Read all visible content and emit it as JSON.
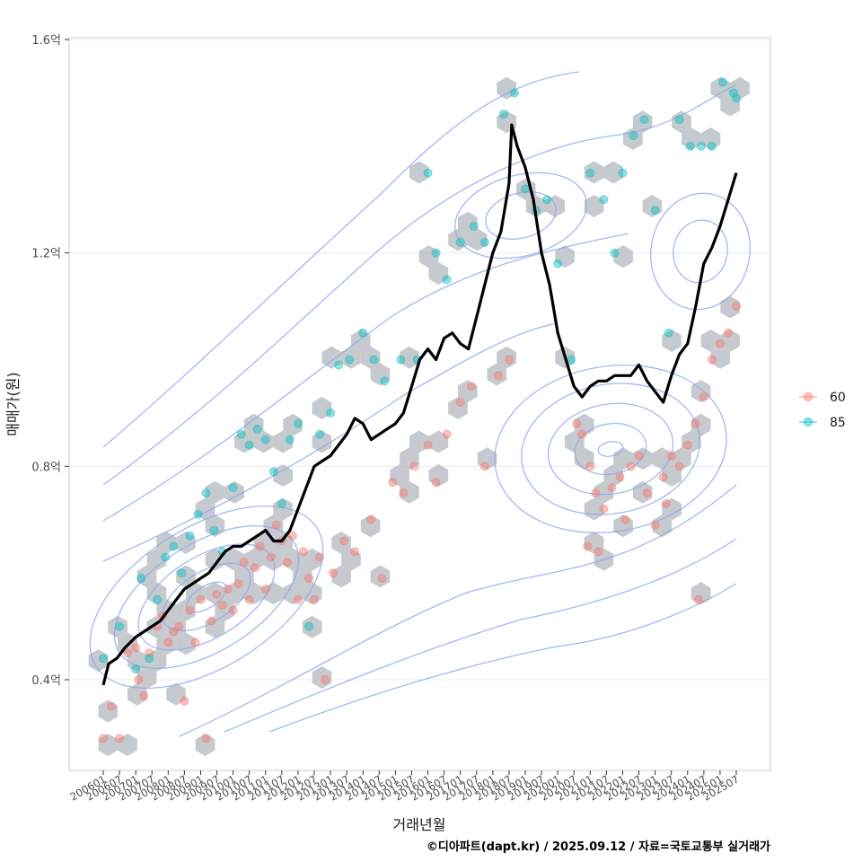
{
  "chart_data": {
    "type": "scatter",
    "xlabel": "거래년월",
    "ylabel": "매매가(원)",
    "caption": "©디아파트(dapt.kr) / 2025.09.12 / 자료=국토교통부 실거래가",
    "x_range": [
      "2006-01",
      "2025-07"
    ],
    "ylim": [
      0.22,
      1.6
    ],
    "y_ticks": [
      0.4,
      0.8,
      1.2,
      1.6
    ],
    "y_tick_labels": [
      "0.4억",
      "0.8억",
      "1.2억",
      "1.6억"
    ],
    "x_tick_labels": [
      "200601",
      "200607",
      "200701",
      "200707",
      "200801",
      "200807",
      "200901",
      "200907",
      "201001",
      "201007",
      "201101",
      "201107",
      "201201",
      "201207",
      "201301",
      "201307",
      "201401",
      "201407",
      "201501",
      "201507",
      "201601",
      "201607",
      "201701",
      "201707",
      "201801",
      "201807",
      "201901",
      "201907",
      "202001",
      "202007",
      "202101",
      "202107",
      "202201",
      "202207",
      "202301",
      "202307",
      "202401",
      "202407",
      "202501",
      "202507"
    ],
    "grid": true,
    "legend": {
      "position": "right",
      "entries": [
        {
          "name": "60",
          "color": "#F8766D"
        },
        {
          "name": "85",
          "color": "#00BFC4"
        }
      ]
    },
    "colors": {
      "series_60": "#F8766D",
      "series_85": "#00BFC4",
      "hexbin": "#b3b8bd",
      "contour": "#8fa6ee",
      "trend": "#000000",
      "panel_border": "#cccccc",
      "grid": "#ebebeb"
    },
    "trend_line": {
      "name": "",
      "points": [
        [
          "2006-01",
          0.39
        ],
        [
          "2006-03",
          0.43
        ],
        [
          "2006-06",
          0.44
        ],
        [
          "2006-09",
          0.46
        ],
        [
          "2007-01",
          0.48
        ],
        [
          "2007-04",
          0.49
        ],
        [
          "2007-07",
          0.5
        ],
        [
          "2007-10",
          0.51
        ],
        [
          "2008-01",
          0.53
        ],
        [
          "2008-04",
          0.55
        ],
        [
          "2008-07",
          0.57
        ],
        [
          "2008-10",
          0.58
        ],
        [
          "2009-01",
          0.59
        ],
        [
          "2009-04",
          0.6
        ],
        [
          "2009-07",
          0.62
        ],
        [
          "2009-10",
          0.64
        ],
        [
          "2010-01",
          0.65
        ],
        [
          "2010-04",
          0.65
        ],
        [
          "2010-07",
          0.66
        ],
        [
          "2010-10",
          0.67
        ],
        [
          "2011-01",
          0.68
        ],
        [
          "2011-04",
          0.66
        ],
        [
          "2011-07",
          0.66
        ],
        [
          "2011-10",
          0.68
        ],
        [
          "2012-01",
          0.72
        ],
        [
          "2012-04",
          0.76
        ],
        [
          "2012-07",
          0.8
        ],
        [
          "2012-10",
          0.81
        ],
        [
          "2013-01",
          0.82
        ],
        [
          "2013-04",
          0.84
        ],
        [
          "2013-07",
          0.86
        ],
        [
          "2013-10",
          0.89
        ],
        [
          "2014-01",
          0.88
        ],
        [
          "2014-04",
          0.85
        ],
        [
          "2014-07",
          0.86
        ],
        [
          "2014-10",
          0.87
        ],
        [
          "2015-01",
          0.88
        ],
        [
          "2015-04",
          0.9
        ],
        [
          "2015-07",
          0.95
        ],
        [
          "2015-10",
          1.0
        ],
        [
          "2016-01",
          1.02
        ],
        [
          "2016-04",
          1.0
        ],
        [
          "2016-07",
          1.04
        ],
        [
          "2016-10",
          1.05
        ],
        [
          "2017-01",
          1.03
        ],
        [
          "2017-04",
          1.02
        ],
        [
          "2017-07",
          1.08
        ],
        [
          "2017-10",
          1.14
        ],
        [
          "2018-01",
          1.2
        ],
        [
          "2018-04",
          1.24
        ],
        [
          "2018-07",
          1.33
        ],
        [
          "2018-08",
          1.44
        ],
        [
          "2018-10",
          1.4
        ],
        [
          "2019-01",
          1.36
        ],
        [
          "2019-04",
          1.3
        ],
        [
          "2019-07",
          1.2
        ],
        [
          "2019-10",
          1.14
        ],
        [
          "2020-01",
          1.05
        ],
        [
          "2020-04",
          1.0
        ],
        [
          "2020-07",
          0.95
        ],
        [
          "2020-10",
          0.93
        ],
        [
          "2021-01",
          0.95
        ],
        [
          "2021-04",
          0.96
        ],
        [
          "2021-07",
          0.96
        ],
        [
          "2021-10",
          0.97
        ],
        [
          "2022-01",
          0.97
        ],
        [
          "2022-04",
          0.97
        ],
        [
          "2022-07",
          0.99
        ],
        [
          "2022-10",
          0.96
        ],
        [
          "2023-01",
          0.94
        ],
        [
          "2023-04",
          0.92
        ],
        [
          "2023-07",
          0.97
        ],
        [
          "2023-10",
          1.01
        ],
        [
          "2024-01",
          1.03
        ],
        [
          "2024-04",
          1.1
        ],
        [
          "2024-07",
          1.18
        ],
        [
          "2024-10",
          1.21
        ],
        [
          "2025-01",
          1.25
        ],
        [
          "2025-04",
          1.3
        ],
        [
          "2025-07",
          1.35
        ]
      ]
    },
    "series": [
      {
        "name": "60",
        "points": [
          [
            "2006-01",
            0.29
          ],
          [
            "2006-04",
            0.35
          ],
          [
            "2006-07",
            0.29
          ],
          [
            "2006-10",
            0.45
          ],
          [
            "2007-01",
            0.46
          ],
          [
            "2007-02",
            0.4
          ],
          [
            "2007-04",
            0.37
          ],
          [
            "2007-06",
            0.45
          ],
          [
            "2007-09",
            0.5
          ],
          [
            "2007-11",
            0.52
          ],
          [
            "2008-01",
            0.47
          ],
          [
            "2008-03",
            0.49
          ],
          [
            "2008-05",
            0.5
          ],
          [
            "2008-07",
            0.36
          ],
          [
            "2008-09",
            0.53
          ],
          [
            "2008-11",
            0.47
          ],
          [
            "2009-01",
            0.55
          ],
          [
            "2009-03",
            0.29
          ],
          [
            "2009-05",
            0.51
          ],
          [
            "2009-07",
            0.56
          ],
          [
            "2009-09",
            0.54
          ],
          [
            "2009-11",
            0.57
          ],
          [
            "2010-01",
            0.53
          ],
          [
            "2010-03",
            0.58
          ],
          [
            "2010-05",
            0.62
          ],
          [
            "2010-07",
            0.55
          ],
          [
            "2010-09",
            0.61
          ],
          [
            "2010-11",
            0.65
          ],
          [
            "2011-01",
            0.57
          ],
          [
            "2011-03",
            0.63
          ],
          [
            "2011-05",
            0.69
          ],
          [
            "2011-07",
            0.66
          ],
          [
            "2011-09",
            0.62
          ],
          [
            "2011-11",
            0.67
          ],
          [
            "2012-01",
            0.55
          ],
          [
            "2012-03",
            0.64
          ],
          [
            "2012-05",
            0.59
          ],
          [
            "2012-07",
            0.55
          ],
          [
            "2012-09",
            0.63
          ],
          [
            "2012-11",
            0.4
          ],
          [
            "2013-02",
            0.6
          ],
          [
            "2013-06",
            0.66
          ],
          [
            "2013-10",
            0.64
          ],
          [
            "2014-04",
            0.7
          ],
          [
            "2014-08",
            0.59
          ],
          [
            "2014-12",
            0.77
          ],
          [
            "2015-04",
            0.75
          ],
          [
            "2015-08",
            0.8
          ],
          [
            "2016-01",
            0.84
          ],
          [
            "2016-04",
            0.77
          ],
          [
            "2016-08",
            0.86
          ],
          [
            "2017-01",
            0.92
          ],
          [
            "2017-05",
            0.95
          ],
          [
            "2017-10",
            0.8
          ],
          [
            "2018-03",
            0.97
          ],
          [
            "2018-07",
            1.0
          ],
          [
            "2020-10",
            0.86
          ],
          [
            "2021-01",
            0.8
          ],
          [
            "2021-03",
            0.75
          ],
          [
            "2021-06",
            0.72
          ],
          [
            "2021-09",
            0.76
          ],
          [
            "2021-12",
            0.78
          ],
          [
            "2022-02",
            0.7
          ],
          [
            "2022-04",
            0.8
          ],
          [
            "2022-07",
            0.82
          ],
          [
            "2022-10",
            0.75
          ],
          [
            "2023-01",
            0.69
          ],
          [
            "2023-04",
            0.78
          ],
          [
            "2023-07",
            0.82
          ],
          [
            "2023-10",
            0.8
          ],
          [
            "2024-01",
            0.84
          ],
          [
            "2024-04",
            0.88
          ],
          [
            "2024-07",
            0.93
          ],
          [
            "2024-10",
            1.0
          ],
          [
            "2025-01",
            1.03
          ],
          [
            "2025-04",
            1.05
          ],
          [
            "2025-07",
            1.1
          ],
          [
            "2024-05",
            0.55
          ],
          [
            "2020-12",
            0.65
          ],
          [
            "2021-04",
            0.64
          ],
          [
            "2020-08",
            0.88
          ],
          [
            "2023-05",
            0.73
          ]
        ]
      },
      {
        "name": "85",
        "points": [
          [
            "2006-01",
            0.44
          ],
          [
            "2006-07",
            0.5
          ],
          [
            "2007-01",
            0.42
          ],
          [
            "2007-03",
            0.59
          ],
          [
            "2007-06",
            0.44
          ],
          [
            "2007-09",
            0.55
          ],
          [
            "2007-12",
            0.63
          ],
          [
            "2008-03",
            0.65
          ],
          [
            "2008-06",
            0.6
          ],
          [
            "2008-09",
            0.67
          ],
          [
            "2008-12",
            0.71
          ],
          [
            "2009-03",
            0.75
          ],
          [
            "2009-06",
            0.68
          ],
          [
            "2009-09",
            0.64
          ],
          [
            "2010-01",
            0.76
          ],
          [
            "2010-04",
            0.86
          ],
          [
            "2010-07",
            0.84
          ],
          [
            "2010-10",
            0.87
          ],
          [
            "2011-01",
            0.85
          ],
          [
            "2011-04",
            0.79
          ],
          [
            "2011-07",
            0.73
          ],
          [
            "2011-10",
            0.85
          ],
          [
            "2012-01",
            0.88
          ],
          [
            "2012-05",
            0.5
          ],
          [
            "2012-09",
            0.86
          ],
          [
            "2013-01",
            0.9
          ],
          [
            "2013-04",
            0.99
          ],
          [
            "2013-08",
            1.0
          ],
          [
            "2014-01",
            1.05
          ],
          [
            "2014-05",
            1.0
          ],
          [
            "2014-09",
            0.96
          ],
          [
            "2015-03",
            1.0
          ],
          [
            "2015-09",
            1.0
          ],
          [
            "2016-01",
            1.35
          ],
          [
            "2016-04",
            1.2
          ],
          [
            "2016-08",
            1.15
          ],
          [
            "2017-01",
            1.22
          ],
          [
            "2017-06",
            1.25
          ],
          [
            "2017-10",
            1.22
          ],
          [
            "2018-05",
            1.46
          ],
          [
            "2018-09",
            1.5
          ],
          [
            "2019-01",
            1.32
          ],
          [
            "2019-05",
            1.28
          ],
          [
            "2019-09",
            1.3
          ],
          [
            "2020-01",
            1.18
          ],
          [
            "2020-06",
            1.0
          ],
          [
            "2021-01",
            1.35
          ],
          [
            "2021-06",
            1.3
          ],
          [
            "2021-10",
            1.2
          ],
          [
            "2022-01",
            1.35
          ],
          [
            "2022-05",
            1.42
          ],
          [
            "2022-09",
            1.45
          ],
          [
            "2023-01",
            1.28
          ],
          [
            "2023-06",
            1.05
          ],
          [
            "2023-10",
            1.45
          ],
          [
            "2024-02",
            1.4
          ],
          [
            "2024-06",
            1.4
          ],
          [
            "2024-10",
            1.4
          ],
          [
            "2025-02",
            1.52
          ],
          [
            "2025-06",
            1.5
          ],
          [
            "2025-07",
            1.49
          ]
        ]
      }
    ]
  }
}
